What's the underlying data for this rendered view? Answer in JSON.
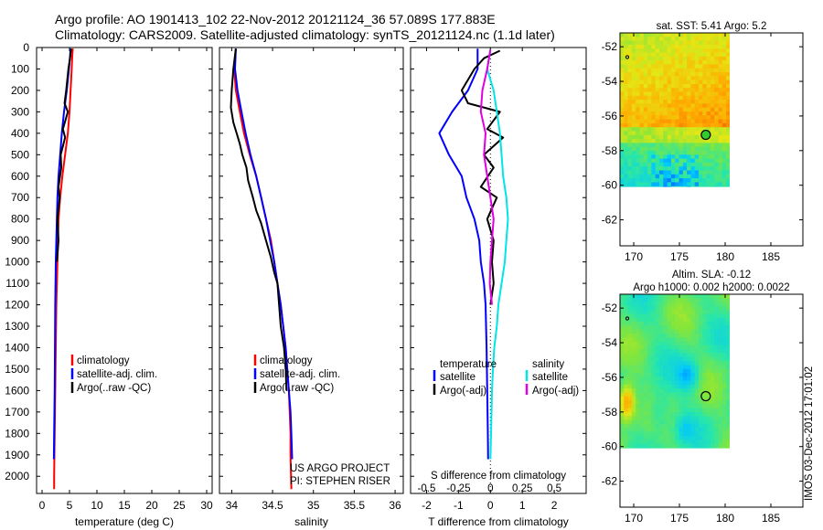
{
  "title": {
    "line1": "Argo profile: AO 1901413_102 22-Nov-2012 20121124_36 57.089S 177.883E",
    "line2": "Climatology: CARS2009. Satellite-adjusted climatology: synTS_20121124.nc (1.1d later)"
  },
  "side_label": "IMOS 03-Dec-2012 17:01:02",
  "colors": {
    "climatology": "#ff0000",
    "satellite": "#0000ff",
    "argo": "#000000",
    "sal_satellite": "#00e5e5",
    "sal_argo": "#e000e0"
  },
  "chart_data": [
    {
      "type": "line",
      "panel": "temperature",
      "xlabel": "temperature (deg C)",
      "xlim": [
        -1,
        31
      ],
      "xticks": [
        0,
        5,
        10,
        15,
        20,
        25,
        30
      ],
      "ylim": [
        2080,
        0
      ],
      "yticks": [
        0,
        100,
        200,
        300,
        400,
        500,
        600,
        700,
        800,
        900,
        1000,
        1100,
        1200,
        1300,
        1400,
        1500,
        1600,
        1700,
        1800,
        1900,
        2000
      ],
      "legend": [
        "climatology",
        "satellite-adj. clim.",
        "Argo(..raw -QC)"
      ],
      "series": [
        {
          "name": "climatology",
          "color": "#ff0000",
          "points": [
            [
              5.6,
              5
            ],
            [
              5.5,
              40
            ],
            [
              5.4,
              100
            ],
            [
              5.2,
              200
            ],
            [
              5,
              300
            ],
            [
              4.7,
              400
            ],
            [
              4.2,
              500
            ],
            [
              3.7,
              600
            ],
            [
              3.3,
              700
            ],
            [
              3,
              800
            ],
            [
              2.9,
              900
            ],
            [
              2.8,
              1000
            ],
            [
              2.7,
              1100
            ],
            [
              2.6,
              1200
            ],
            [
              2.5,
              1400
            ],
            [
              2.4,
              1600
            ],
            [
              2.3,
              1800
            ],
            [
              2.2,
              2000
            ],
            [
              2.2,
              2060
            ]
          ]
        },
        {
          "name": "satellite-adj. clim.",
          "color": "#0000ff",
          "points": [
            [
              5.2,
              5
            ],
            [
              5.1,
              40
            ],
            [
              4.9,
              100
            ],
            [
              4.5,
              200
            ],
            [
              4,
              300
            ],
            [
              3.6,
              400
            ],
            [
              3.3,
              500
            ],
            [
              3,
              600
            ],
            [
              2.8,
              700
            ],
            [
              2.7,
              800
            ],
            [
              2.6,
              900
            ],
            [
              2.5,
              1000
            ],
            [
              2.45,
              1100
            ],
            [
              2.4,
              1200
            ],
            [
              2.35,
              1400
            ],
            [
              2.3,
              1600
            ],
            [
              2.2,
              1800
            ],
            [
              2.15,
              1920
            ]
          ]
        },
        {
          "name": "Argo(..raw -QC)",
          "color": "#000000",
          "points": [
            [
              5.3,
              5
            ],
            [
              5.1,
              50
            ],
            [
              4.8,
              100
            ],
            [
              4.4,
              200
            ],
            [
              4.1,
              260
            ],
            [
              4.7,
              300
            ],
            [
              3.8,
              380
            ],
            [
              4.2,
              420
            ],
            [
              3.4,
              500
            ],
            [
              3.5,
              560
            ],
            [
              3,
              650
            ],
            [
              3.2,
              700
            ],
            [
              2.8,
              800
            ],
            [
              3,
              900
            ],
            [
              2.7,
              1000
            ]
          ]
        }
      ]
    },
    {
      "type": "line",
      "panel": "salinity",
      "xlabel": "salinity",
      "xlim": [
        33.85,
        36.1
      ],
      "xticks": [
        34,
        34.5,
        35,
        35.5,
        36
      ],
      "xticklabels": [
        "34",
        "34.5",
        "35",
        "35.5",
        "36"
      ],
      "ylim": [
        2080,
        0
      ],
      "legend": [
        "climatology",
        "satellite-adj. clim.",
        "Argo(..raw -QC)"
      ],
      "annotation": [
        "US ARGO PROJECT",
        "PI: STEPHEN RISER"
      ],
      "series": [
        {
          "name": "climatology",
          "color": "#ff0000",
          "points": [
            [
              34.05,
              5
            ],
            [
              34.03,
              100
            ],
            [
              34.05,
              200
            ],
            [
              34.1,
              300
            ],
            [
              34.15,
              400
            ],
            [
              34.22,
              500
            ],
            [
              34.3,
              600
            ],
            [
              34.36,
              700
            ],
            [
              34.42,
              800
            ],
            [
              34.48,
              900
            ],
            [
              34.52,
              1000
            ],
            [
              34.56,
              1100
            ],
            [
              34.6,
              1200
            ],
            [
              34.63,
              1300
            ],
            [
              34.66,
              1400
            ],
            [
              34.68,
              1500
            ],
            [
              34.7,
              1600
            ],
            [
              34.71,
              1700
            ],
            [
              34.72,
              1800
            ],
            [
              34.72,
              1900
            ],
            [
              34.73,
              2060
            ]
          ]
        },
        {
          "name": "satellite-adj. clim.",
          "color": "#0000ff",
          "points": [
            [
              34.05,
              5
            ],
            [
              34.04,
              100
            ],
            [
              34.07,
              200
            ],
            [
              34.12,
              300
            ],
            [
              34.17,
              400
            ],
            [
              34.23,
              500
            ],
            [
              34.3,
              600
            ],
            [
              34.36,
              700
            ],
            [
              34.42,
              800
            ],
            [
              34.47,
              900
            ],
            [
              34.52,
              1000
            ],
            [
              34.56,
              1100
            ],
            [
              34.6,
              1200
            ],
            [
              34.63,
              1300
            ],
            [
              34.66,
              1400
            ],
            [
              34.68,
              1500
            ],
            [
              34.7,
              1600
            ],
            [
              34.72,
              1700
            ],
            [
              34.73,
              1800
            ],
            [
              34.74,
              1920
            ]
          ]
        },
        {
          "name": "Argo(..raw -QC)",
          "color": "#000000",
          "points": [
            [
              34.05,
              5
            ],
            [
              34.02,
              100
            ],
            [
              34,
              200
            ],
            [
              33.99,
              280
            ],
            [
              34.02,
              350
            ],
            [
              34.06,
              400
            ],
            [
              34.1,
              450
            ],
            [
              34.13,
              500
            ],
            [
              34.18,
              560
            ],
            [
              34.2,
              620
            ],
            [
              34.26,
              700
            ],
            [
              34.3,
              760
            ],
            [
              34.36,
              820
            ],
            [
              34.42,
              900
            ],
            [
              34.48,
              980
            ],
            [
              34.52,
              1050
            ],
            [
              34.56,
              1100
            ],
            [
              34.58,
              1200
            ],
            [
              34.6,
              1300
            ],
            [
              34.64,
              1400
            ],
            [
              34.66,
              1500
            ],
            [
              34.67,
              1600
            ]
          ]
        }
      ]
    },
    {
      "type": "line",
      "panel": "difference",
      "xlabel": "T difference from climatology",
      "xlabel_top": "S difference from climatology",
      "xlim": [
        -2.5,
        3
      ],
      "xticks": [
        -2,
        -1,
        0,
        1,
        2
      ],
      "xticklabels": [
        "-2",
        "-1",
        "0",
        "1",
        "2"
      ],
      "sticks": [
        -2,
        -1,
        0,
        1,
        2
      ],
      "sticklabels": [
        "-0.5",
        "-0.25",
        "0",
        "0.25",
        "0.5"
      ],
      "ylim": [
        2080,
        0
      ],
      "legend": {
        "temperature_head": "temperature",
        "salinity_head": "salinity",
        "t_satellite": "satellite",
        "t_argo": "Argo(-adj)",
        "s_satellite": "satellite",
        "s_argo": "Argo(-adj)"
      },
      "series": [
        {
          "name": "satellite",
          "kind": "temperature",
          "color": "#0000ff",
          "points": [
            [
              -0.4,
              5
            ],
            [
              -0.4,
              100
            ],
            [
              -0.7,
              200
            ],
            [
              -1.2,
              300
            ],
            [
              -1.6,
              400
            ],
            [
              -1.3,
              500
            ],
            [
              -0.9,
              600
            ],
            [
              -0.75,
              700
            ],
            [
              -0.5,
              800
            ],
            [
              -0.35,
              900
            ],
            [
              -0.3,
              1000
            ],
            [
              -0.2,
              1100
            ],
            [
              -0.15,
              1200
            ],
            [
              -0.12,
              1400
            ],
            [
              -0.1,
              1600
            ],
            [
              -0.08,
              1800
            ],
            [
              -0.07,
              1920
            ]
          ]
        },
        {
          "name": "Argo(-adj)",
          "kind": "temperature",
          "color": "#000000",
          "points": [
            [
              0.3,
              15
            ],
            [
              -0.2,
              50
            ],
            [
              -0.5,
              100
            ],
            [
              -0.9,
              200
            ],
            [
              -0.7,
              260
            ],
            [
              0.3,
              300
            ],
            [
              -0.1,
              380
            ],
            [
              0.4,
              420
            ],
            [
              -0.2,
              500
            ],
            [
              0.1,
              560
            ],
            [
              -0.3,
              650
            ],
            [
              0.2,
              700
            ],
            [
              -0.1,
              800
            ],
            [
              0.1,
              900
            ],
            [
              0.05,
              1000
            ],
            [
              0.1,
              1100
            ],
            [
              0.0,
              1200
            ]
          ]
        },
        {
          "name": "satellite",
          "kind": "salinity",
          "color": "#00e5e5",
          "points": [
            [
              0,
              10
            ],
            [
              -0.1,
              100
            ],
            [
              0.1,
              200
            ],
            [
              0.2,
              300
            ],
            [
              0.3,
              400
            ],
            [
              0.35,
              500
            ],
            [
              0.4,
              600
            ],
            [
              0.5,
              700
            ],
            [
              0.55,
              800
            ],
            [
              0.5,
              900
            ],
            [
              0.45,
              1000
            ],
            [
              0.35,
              1100
            ],
            [
              0.25,
              1200
            ],
            [
              0.2,
              1300
            ],
            [
              0.12,
              1400
            ],
            [
              0.08,
              1500
            ],
            [
              0.05,
              1600
            ],
            [
              0.02,
              1800
            ],
            [
              0.0,
              1920
            ]
          ]
        },
        {
          "name": "Argo(-adj)",
          "kind": "salinity",
          "color": "#e000e0",
          "points": [
            [
              0,
              10
            ],
            [
              -0.1,
              100
            ],
            [
              -0.25,
              200
            ],
            [
              -0.3,
              300
            ],
            [
              -0.15,
              400
            ],
            [
              -0.2,
              500
            ],
            [
              -0.1,
              600
            ],
            [
              0.0,
              700
            ],
            [
              0.1,
              800
            ],
            [
              0.05,
              900
            ],
            [
              0.0,
              1000
            ],
            [
              -0.02,
              1100
            ],
            [
              0.05,
              1200
            ]
          ]
        }
      ]
    }
  ],
  "maps": [
    {
      "title": [
        "sat. SST: 5.41 Argo: 5.2"
      ],
      "xticks": [
        170,
        175,
        180,
        185
      ],
      "yticks": [
        -52,
        -54,
        -56,
        -58,
        -60,
        -62
      ],
      "xlim": [
        168.5,
        188.5
      ],
      "ylim": [
        -63.5,
        -51.2
      ],
      "data_extent": {
        "lon": [
          168.5,
          180.5
        ],
        "lat": [
          -60.1,
          -51.2
        ]
      },
      "profile_marker": {
        "lon": 177.883,
        "lat": -57.089
      },
      "small_marker": {
        "lon": 169.3,
        "lat": -52.6
      },
      "palette": "sst"
    },
    {
      "title": [
        "Altim. SLA: -0.12",
        "Argo h1000: 0.002 h2000: 0.0022"
      ],
      "xticks": [
        170,
        175,
        180,
        185
      ],
      "yticks": [
        -52,
        -54,
        -56,
        -58,
        -60,
        -62
      ],
      "xlim": [
        168.5,
        188.5
      ],
      "ylim": [
        -63.5,
        -51.2
      ],
      "data_extent": {
        "lon": [
          168.5,
          180.5
        ],
        "lat": [
          -60.1,
          -51.2
        ]
      },
      "profile_marker": {
        "lon": 177.883,
        "lat": -57.089
      },
      "small_marker": {
        "lon": 169.3,
        "lat": -52.6
      },
      "palette": "sla"
    }
  ]
}
